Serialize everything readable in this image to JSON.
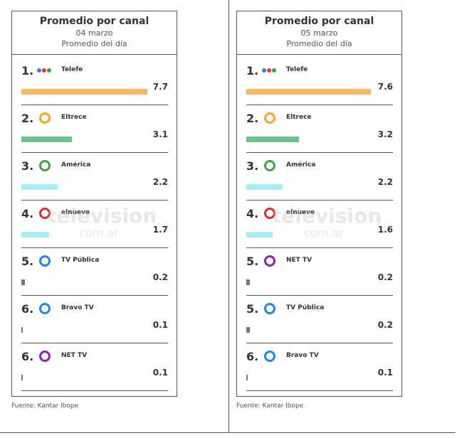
{
  "panels": [
    {
      "title": "Promedio por canal",
      "date": "04 marzo",
      "subtitle": "Promedio del día",
      "rows": [
        {
          "rank": "1.",
          "name": "Telefe",
          "value": 7.7,
          "color": "#f9b860"
        },
        {
          "rank": "2.",
          "name": "Eltrece",
          "value": 3.1,
          "color": "#6cc18e"
        },
        {
          "rank": "3.",
          "name": "América",
          "value": 2.2,
          "color": "#a6eef2"
        },
        {
          "rank": "4.",
          "name": "elnueve",
          "value": 1.7,
          "color": "#a6eef2"
        },
        {
          "rank": "5.",
          "name": "TV Pública",
          "value": 0.2,
          "color": "#777777"
        },
        {
          "rank": "6.",
          "name": "Bravo TV",
          "value": 0.1,
          "color": "#777777"
        },
        {
          "rank": "6.",
          "name": "NET TV",
          "value": 0.1,
          "color": "#777777"
        }
      ],
      "source": "Fuente: Kantar Ibope"
    },
    {
      "title": "Promedio por canal",
      "date": "05 marzo",
      "subtitle": "Promedio del día",
      "rows": [
        {
          "rank": "1.",
          "name": "Telefe",
          "value": 7.6,
          "color": "#f9b860"
        },
        {
          "rank": "2.",
          "name": "Eltrece",
          "value": 3.2,
          "color": "#6cc18e"
        },
        {
          "rank": "3.",
          "name": "América",
          "value": 2.2,
          "color": "#a6eef2"
        },
        {
          "rank": "4.",
          "name": "elnueve",
          "value": 1.6,
          "color": "#a6eef2"
        },
        {
          "rank": "5.",
          "name": "NET TV",
          "value": 0.2,
          "color": "#777777"
        },
        {
          "rank": "5.",
          "name": "TV Pública",
          "value": 0.2,
          "color": "#777777"
        },
        {
          "rank": "6.",
          "name": "Bravo TV",
          "value": 0.1,
          "color": "#777777"
        }
      ],
      "source": "Fuente: Kantar Ibope"
    }
  ],
  "watermark": {
    "main": "television",
    "sub": ".com.ar"
  }
}
